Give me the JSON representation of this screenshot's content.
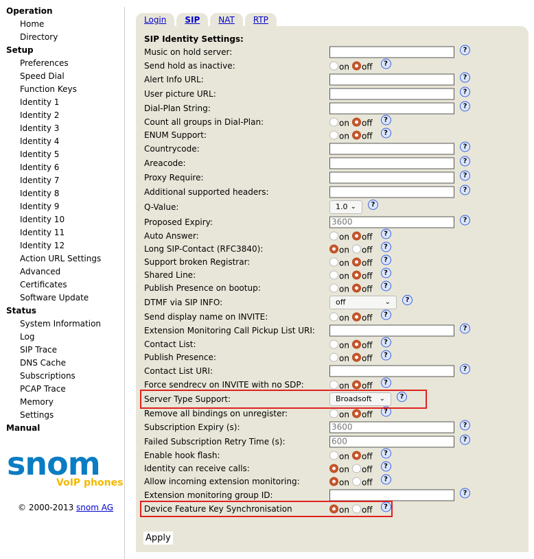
{
  "sidebar": [
    {
      "type": "sec",
      "label": "Operation"
    },
    {
      "type": "item",
      "label": "Home"
    },
    {
      "type": "item",
      "label": "Directory"
    },
    {
      "type": "sec",
      "label": "Setup"
    },
    {
      "type": "item",
      "label": "Preferences"
    },
    {
      "type": "item",
      "label": "Speed Dial"
    },
    {
      "type": "item",
      "label": "Function Keys"
    },
    {
      "type": "item",
      "label": "Identity 1"
    },
    {
      "type": "item",
      "label": "Identity 2"
    },
    {
      "type": "item",
      "label": "Identity 3"
    },
    {
      "type": "item",
      "label": "Identity 4"
    },
    {
      "type": "item",
      "label": "Identity 5"
    },
    {
      "type": "item",
      "label": "Identity 6"
    },
    {
      "type": "item",
      "label": "Identity 7"
    },
    {
      "type": "item",
      "label": "Identity 8"
    },
    {
      "type": "item",
      "label": "Identity 9"
    },
    {
      "type": "item",
      "label": "Identity 10"
    },
    {
      "type": "item",
      "label": "Identity 11"
    },
    {
      "type": "item",
      "label": "Identity 12"
    },
    {
      "type": "item",
      "label": "Action URL Settings"
    },
    {
      "type": "item",
      "label": "Advanced"
    },
    {
      "type": "item",
      "label": "Certificates"
    },
    {
      "type": "item",
      "label": "Software Update"
    },
    {
      "type": "sec",
      "label": "Status"
    },
    {
      "type": "item",
      "label": "System Information"
    },
    {
      "type": "item",
      "label": "Log"
    },
    {
      "type": "item",
      "label": "SIP Trace"
    },
    {
      "type": "item",
      "label": "DNS Cache"
    },
    {
      "type": "item",
      "label": "Subscriptions"
    },
    {
      "type": "item",
      "label": "PCAP Trace"
    },
    {
      "type": "item",
      "label": "Memory"
    },
    {
      "type": "item",
      "label": "Settings"
    },
    {
      "type": "sec",
      "label": "Manual"
    }
  ],
  "logo": {
    "text": "snom",
    "tagline": "VoIP phones",
    "brand_color": "#0a7cc4",
    "tagline_color": "#f5b800"
  },
  "copyright": {
    "text": "© 2000-2013 ",
    "link": "snom AG"
  },
  "tabs": [
    {
      "label": "Login",
      "active": false
    },
    {
      "label": "SIP",
      "active": true
    },
    {
      "label": "NAT",
      "active": false
    },
    {
      "label": "RTP",
      "active": false
    }
  ],
  "section_title": "SIP Identity Settings:",
  "radio_labels": {
    "on": "on",
    "off": "off"
  },
  "help_icon": "?",
  "rows": [
    {
      "label": "Music on hold server:",
      "type": "t",
      "value": ""
    },
    {
      "label": "Send hold as inactive:",
      "type": "r",
      "value": "off"
    },
    {
      "label": "Alert Info URL:",
      "type": "t",
      "value": ""
    },
    {
      "label": "User picture URL:",
      "type": "t",
      "value": ""
    },
    {
      "label": "Dial-Plan String:",
      "type": "t",
      "value": ""
    },
    {
      "label": "Count all groups in Dial-Plan:",
      "type": "r",
      "value": "off"
    },
    {
      "label": "ENUM Support:",
      "type": "r",
      "value": "off"
    },
    {
      "label": "Countrycode:",
      "type": "t",
      "value": ""
    },
    {
      "label": "Areacode:",
      "type": "t",
      "value": ""
    },
    {
      "label": "Proxy Require:",
      "type": "t",
      "value": ""
    },
    {
      "label": "Additional supported headers:",
      "type": "t",
      "value": ""
    },
    {
      "label": "Q-Value:",
      "type": "s",
      "value": "1.0",
      "w": 48
    },
    {
      "label": "Proposed Expiry:",
      "type": "t",
      "value": "3600"
    },
    {
      "label": "Auto Answer:",
      "type": "r",
      "value": "off"
    },
    {
      "label": "Long SIP-Contact (RFC3840):",
      "type": "r",
      "value": "on"
    },
    {
      "label": "Support broken Registrar:",
      "type": "r",
      "value": "off"
    },
    {
      "label": "Shared Line:",
      "type": "r",
      "value": "off"
    },
    {
      "label": "Publish Presence on bootup:",
      "type": "r",
      "value": "off"
    },
    {
      "label": "DTMF via SIP INFO:",
      "type": "s",
      "value": "off",
      "w": 98
    },
    {
      "label": "Send display name on INVITE:",
      "type": "r",
      "value": "off"
    },
    {
      "label": "Extension Monitoring Call Pickup List URI:",
      "type": "t",
      "value": ""
    },
    {
      "label": "Contact List:",
      "type": "r",
      "value": "off"
    },
    {
      "label": "Publish Presence:",
      "type": "r",
      "value": "off"
    },
    {
      "label": "Contact List URI:",
      "type": "t",
      "value": ""
    },
    {
      "label": "Force sendrecv on INVITE with no SDP:",
      "type": "r",
      "value": "off"
    },
    {
      "label": "Server Type Support:",
      "type": "s",
      "value": "Broadsoft",
      "w": 90,
      "highlight": true
    },
    {
      "label": "Remove all bindings on unregister:",
      "type": "r",
      "value": "off"
    },
    {
      "label": "Subscription Expiry (s):",
      "type": "t",
      "value": "3600"
    },
    {
      "label": "Failed Subscription Retry Time (s):",
      "type": "t",
      "value": "600"
    },
    {
      "label": "Enable hook flash:",
      "type": "r",
      "value": "off"
    },
    {
      "label": "Identity can receive calls:",
      "type": "r",
      "value": "on"
    },
    {
      "label": "Allow incoming extension monitoring:",
      "type": "r",
      "value": "on"
    },
    {
      "label": "Extension monitoring group ID:",
      "type": "t",
      "value": ""
    },
    {
      "label": "Device Feature Key Synchronisation",
      "type": "r",
      "value": "on",
      "highlight": true
    }
  ],
  "apply_label": "Apply",
  "highlight_color": "#e02020"
}
